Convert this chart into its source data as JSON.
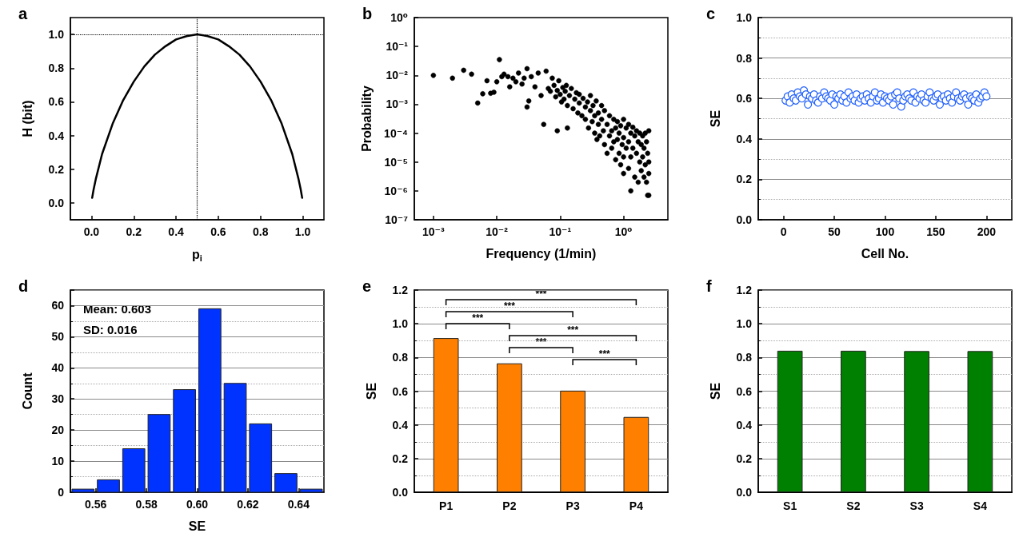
{
  "chart_data": [
    {
      "type": "line",
      "title": "a",
      "xlabel": "p$_{i}$",
      "ylabel": "H (bit)",
      "x": [
        0.003,
        0.01,
        0.02,
        0.05,
        0.1,
        0.15,
        0.2,
        0.25,
        0.3,
        0.35,
        0.4,
        0.45,
        0.5,
        0.55,
        0.6,
        0.65,
        0.7,
        0.75,
        0.8,
        0.85,
        0.9,
        0.95,
        0.98,
        0.99,
        0.997
      ],
      "series": [
        {
          "color": "#000000",
          "values": [
            0.03,
            0.08,
            0.14,
            0.29,
            0.47,
            0.61,
            0.72,
            0.81,
            0.88,
            0.93,
            0.97,
            0.99,
            1.0,
            0.99,
            0.97,
            0.93,
            0.88,
            0.81,
            0.72,
            0.61,
            0.47,
            0.29,
            0.14,
            0.08,
            0.03
          ]
        }
      ],
      "xlim": [
        -0.1,
        1.1
      ],
      "xticks": [
        {
          "value": 0,
          "label": "0.0"
        },
        0.2,
        0.4,
        0.6,
        0.8,
        {
          "value": 1,
          "label": "1.0"
        }
      ],
      "ylim": [
        -0.1,
        1.1
      ],
      "yticks": [
        {
          "value": 0,
          "label": "0.0"
        },
        0.2,
        0.4,
        0.6,
        0.8,
        {
          "value": 1,
          "label": "1.0"
        }
      ],
      "ref_lines": [
        {
          "axis": "y",
          "value": 1,
          "line_style": "dotted",
          "color": "#000000"
        },
        {
          "axis": "x",
          "value": 0.5,
          "line_style": "dotted",
          "color": "#000000"
        }
      ]
    },
    {
      "type": "scatter",
      "title": "b",
      "xlabel": "Frequency (1/min)",
      "ylabel": "Probability",
      "log": "xy",
      "marker": "circle",
      "x": [
        0.001,
        0.002,
        0.003,
        0.004,
        0.005,
        0.006,
        0.007,
        0.008,
        0.009,
        0.01,
        0.011,
        0.012,
        0.013,
        0.015,
        0.016,
        0.018,
        0.02,
        0.022,
        0.025,
        0.027,
        0.03,
        0.03,
        0.032,
        0.035,
        0.04,
        0.045,
        0.05,
        0.055,
        0.06,
        0.09,
        0.13,
        0.065,
        0.07,
        0.075,
        0.08,
        0.085,
        0.09,
        0.095,
        0.1,
        0.105,
        0.11,
        0.115,
        0.12,
        0.125,
        0.13,
        0.14,
        0.15,
        0.16,
        0.17,
        0.18,
        0.19,
        0.2,
        0.2,
        0.22,
        0.23,
        0.25,
        0.25,
        0.27,
        0.28,
        0.3,
        0.3,
        0.32,
        0.33,
        0.35,
        0.35,
        0.37,
        0.38,
        0.4,
        0.4,
        0.42,
        0.45,
        0.45,
        0.48,
        0.5,
        0.5,
        0.55,
        0.55,
        0.6,
        0.6,
        0.65,
        0.65,
        0.7,
        0.7,
        0.75,
        0.75,
        0.8,
        0.8,
        0.85,
        0.85,
        0.9,
        0.9,
        0.95,
        1.0,
        1.0,
        1.0,
        1.0,
        1.1,
        1.1,
        1.2,
        1.2,
        1.2,
        1.3,
        1.3,
        1.3,
        1.4,
        1.4,
        1.5,
        1.5,
        1.6,
        1.6,
        1.7,
        1.7,
        1.8,
        1.8,
        1.9,
        1.9,
        2.0,
        2.0,
        2.1,
        2.1,
        2.2,
        2.2,
        2.3,
        2.3,
        2.4,
        2.4,
        2.5,
        2.5,
        2.5,
        2.5
      ],
      "series": [
        {
          "color": "#000000",
          "values": [
            0.01,
            0.008,
            0.015,
            0.011,
            0.0011,
            0.0023,
            0.0065,
            0.0024,
            0.0026,
            0.006,
            0.035,
            0.009,
            0.011,
            0.009,
            0.004,
            0.008,
            0.006,
            0.012,
            0.005,
            0.008,
            0.017,
            0.0008,
            0.0013,
            0.009,
            0.004,
            0.012,
            0.002,
            0.0002,
            0.014,
            0.00012,
            0.00015,
            0.0035,
            0.0028,
            0.008,
            0.0045,
            0.0018,
            0.003,
            0.0065,
            0.0022,
            0.0012,
            0.0038,
            0.0015,
            0.0028,
            0.0045,
            0.0009,
            0.002,
            0.0035,
            0.0007,
            0.0015,
            0.0025,
            0.0005,
            0.0011,
            0.0022,
            0.0004,
            0.0016,
            0.0008,
            0.0003,
            0.0012,
            0.00015,
            0.0006,
            0.002,
            0.00025,
            0.0009,
            0.0004,
            0.0001,
            0.0013,
            6e-05,
            0.0005,
            0.0002,
            8e-05,
            0.0003,
            0.0009,
            0.00012,
            4e-05,
            0.0006,
            0.0002,
            2e-05,
            0.0004,
            8e-05,
            0.00012,
            3e-05,
            0.0003,
            5e-05,
            0.00015,
            1.2e-05,
            0.00025,
            6e-05,
            2e-05,
            0.0001,
            0.00018,
            8e-06,
            4e-05,
            0.0003,
            7e-05,
            1.5e-05,
            4e-06,
            0.00015,
            3e-05,
            0.0002,
            6e-06,
            5e-05,
            0.0001,
            1.5e-05,
            1e-06,
            0.00016,
            3e-05,
            8e-05,
            3e-06,
            0.00012,
            2e-05,
            5e-05,
            2e-06,
            0.0001,
            1e-05,
            4e-05,
            5e-06,
            8e-05,
            1.5e-05,
            3e-06,
            3e-05,
            0.0001,
            8e-06,
            5e-05,
            2e-06,
            2e-05,
            7e-07,
            1e-05,
            0.00012,
            7e-07,
            4e-06
          ]
        }
      ],
      "xlim": [
        0.0005,
        5
      ],
      "xticks": [
        {
          "value": 0.001,
          "label": "10⁻³"
        },
        {
          "value": 0.01,
          "label": "10⁻²"
        },
        {
          "value": 0.1,
          "label": "10⁻¹"
        },
        {
          "value": 1,
          "label": "10⁰"
        }
      ],
      "ylim": [
        1e-07,
        1
      ],
      "yticks": [
        {
          "value": 1e-07,
          "label": "10⁻⁷"
        },
        {
          "value": 1e-06,
          "label": "10⁻⁶"
        },
        {
          "value": 1e-05,
          "label": "10⁻⁵"
        },
        {
          "value": 0.0001,
          "label": "10⁻⁴"
        },
        {
          "value": 0.001,
          "label": "10⁻³"
        },
        {
          "value": 0.01,
          "label": "10⁻²"
        },
        {
          "value": 0.1,
          "label": "10⁻¹"
        },
        {
          "value": 1,
          "label": "10⁰"
        }
      ]
    },
    {
      "type": "scatter",
      "title": "c",
      "xlabel": "Cell No.",
      "ylabel": "SE",
      "marker": "circle",
      "grid": "y",
      "x": [
        2,
        4,
        6,
        8,
        10,
        12,
        14,
        16,
        18,
        20,
        22,
        24,
        26,
        28,
        30,
        32,
        34,
        36,
        38,
        40,
        42,
        44,
        46,
        48,
        50,
        52,
        54,
        56,
        58,
        60,
        62,
        64,
        66,
        68,
        70,
        72,
        74,
        76,
        78,
        80,
        82,
        84,
        86,
        88,
        90,
        92,
        94,
        96,
        98,
        100,
        102,
        104,
        106,
        108,
        110,
        112,
        114,
        116,
        118,
        120,
        122,
        124,
        126,
        128,
        130,
        132,
        134,
        136,
        138,
        140,
        142,
        144,
        146,
        148,
        150,
        152,
        154,
        156,
        158,
        160,
        162,
        164,
        166,
        168,
        170,
        172,
        174,
        176,
        178,
        180,
        182,
        184,
        186,
        188,
        190,
        192,
        194,
        196,
        198,
        200
      ],
      "series": [
        {
          "color": "#1f5fff",
          "values": [
            0.59,
            0.61,
            0.58,
            0.62,
            0.6,
            0.59,
            0.63,
            0.61,
            0.6,
            0.64,
            0.62,
            0.57,
            0.61,
            0.6,
            0.62,
            0.59,
            0.58,
            0.61,
            0.6,
            0.63,
            0.61,
            0.6,
            0.59,
            0.62,
            0.57,
            0.61,
            0.6,
            0.62,
            0.59,
            0.61,
            0.58,
            0.63,
            0.6,
            0.61,
            0.59,
            0.62,
            0.58,
            0.6,
            0.61,
            0.59,
            0.62,
            0.6,
            0.58,
            0.61,
            0.63,
            0.59,
            0.6,
            0.62,
            0.58,
            0.61,
            0.6,
            0.59,
            0.61,
            0.57,
            0.62,
            0.63,
            0.6,
            0.56,
            0.59,
            0.61,
            0.62,
            0.6,
            0.59,
            0.63,
            0.58,
            0.61,
            0.6,
            0.62,
            0.59,
            0.58,
            0.61,
            0.63,
            0.6,
            0.59,
            0.61,
            0.62,
            0.57,
            0.6,
            0.61,
            0.59,
            0.62,
            0.6,
            0.58,
            0.61,
            0.63,
            0.6,
            0.59,
            0.61,
            0.62,
            0.6,
            0.57,
            0.61,
            0.6,
            0.59,
            0.62,
            0.58,
            0.6,
            0.61,
            0.63,
            0.61
          ]
        }
      ],
      "xlim": [
        -25,
        225
      ],
      "xticks": [
        0,
        50,
        100,
        150,
        200
      ],
      "ylim": [
        0,
        1
      ],
      "yticks": [
        {
          "value": 0,
          "label": "0.0"
        },
        0.2,
        0.4,
        0.6,
        0.8,
        {
          "value": 1,
          "label": "1.0"
        }
      ]
    },
    {
      "type": "histogram",
      "title": "d",
      "xlabel": "SE",
      "ylabel": "Count",
      "grid": "y",
      "color": "#0033ff",
      "bins": [
        0.55,
        0.56,
        0.57,
        0.58,
        0.59,
        0.6,
        0.61,
        0.62,
        0.63,
        0.64,
        0.65
      ],
      "values": [
        1,
        4,
        14,
        25,
        33,
        59,
        35,
        22,
        6,
        1
      ],
      "xlim": [
        0.55,
        0.65
      ],
      "xticks": [
        0.56,
        0.58,
        {
          "value": 0.6,
          "label": "0.60"
        },
        0.62,
        0.64
      ],
      "ylim": [
        0,
        65
      ],
      "yticks": [
        0,
        10,
        20,
        30,
        40,
        50,
        60
      ],
      "annotations": [
        "Mean: 0.603",
        "SD: 0.016"
      ]
    },
    {
      "type": "bar",
      "title": "e",
      "ylabel": "SE",
      "grid": "y",
      "categories": [
        "P1",
        "P2",
        "P3",
        "P4"
      ],
      "series": [
        {
          "color": "#ff8000",
          "values": [
            0.915,
            0.765,
            0.603,
            0.447
          ]
        }
      ],
      "ylim": [
        0,
        1.2
      ],
      "yticks": [
        {
          "value": 0,
          "label": "0.0"
        },
        0.2,
        0.4,
        0.6,
        0.8,
        {
          "value": 1,
          "label": "1.0"
        },
        1.2
      ],
      "annotations": [
        "***",
        "***",
        "***",
        "***",
        "***",
        "***"
      ]
    },
    {
      "type": "bar",
      "title": "f",
      "ylabel": "SE",
      "grid": "y",
      "categories": [
        "S1",
        "S2",
        "S3",
        "S4"
      ],
      "series": [
        {
          "color": "#008000",
          "values": [
            0.84,
            0.84,
            0.838,
            0.838
          ]
        }
      ],
      "ylim": [
        0,
        1.2
      ],
      "yticks": [
        {
          "value": 0,
          "label": "0.0"
        },
        0.2,
        0.4,
        0.6,
        0.8,
        {
          "value": 1,
          "label": "1.0"
        },
        1.2
      ]
    }
  ]
}
